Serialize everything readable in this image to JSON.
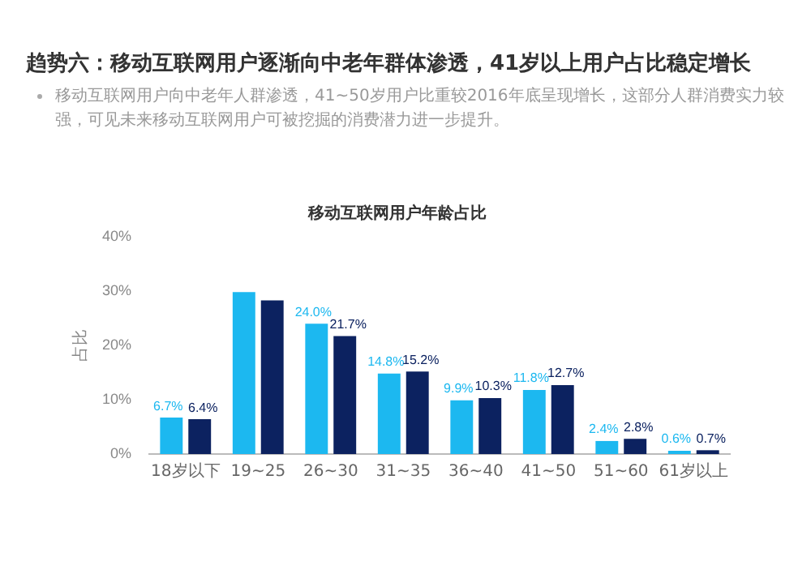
{
  "chart_data": {
    "type": "bar",
    "title": "移动互联网用户年龄占比",
    "subtitle": "趋势六：移动互联网用户逐渐向中老年群体渗透，41岁以上用户占比稳定增长",
    "annotations": [
      "移动互联网用户向中老年人群渗透，41~50岁用户比重较2016年底呈现增长，这部分人群消费实力较强，可见未来移动互联网用户可被挖掘的消费潜力进一步提升。"
    ],
    "categories": [
      "18岁以下",
      "19~25",
      "26~30",
      "31~35",
      "36~40",
      "41~50",
      "51~60",
      "61岁以上"
    ],
    "series": [
      {
        "color": "#1cb8f0",
        "values": [
          6.7,
          29.8,
          24.0,
          14.8,
          9.9,
          11.8,
          2.4,
          0.6
        ],
        "value_labels": [
          "6.7%",
          null,
          "24.0%",
          "14.8%",
          "9.9%",
          "11.8%",
          "2.4%",
          "0.6%"
        ]
      },
      {
        "color": "#0c2260",
        "values": [
          6.4,
          28.3,
          21.7,
          15.2,
          10.3,
          12.7,
          2.8,
          0.7
        ],
        "value_labels": [
          "6.4%",
          null,
          "21.7%",
          "15.2%",
          "10.3%",
          "12.7%",
          "2.8%",
          "0.7%"
        ]
      }
    ],
    "ylabel": "占比",
    "ylim": [
      0,
      40
    ],
    "yticks": [
      {
        "value": 0,
        "label": "0%"
      },
      {
        "value": 10,
        "label": "10%"
      },
      {
        "value": 20,
        "label": "20%"
      },
      {
        "value": 30,
        "label": "30%"
      },
      {
        "value": 40,
        "label": "40%"
      }
    ],
    "grid": false,
    "legend": false
  }
}
